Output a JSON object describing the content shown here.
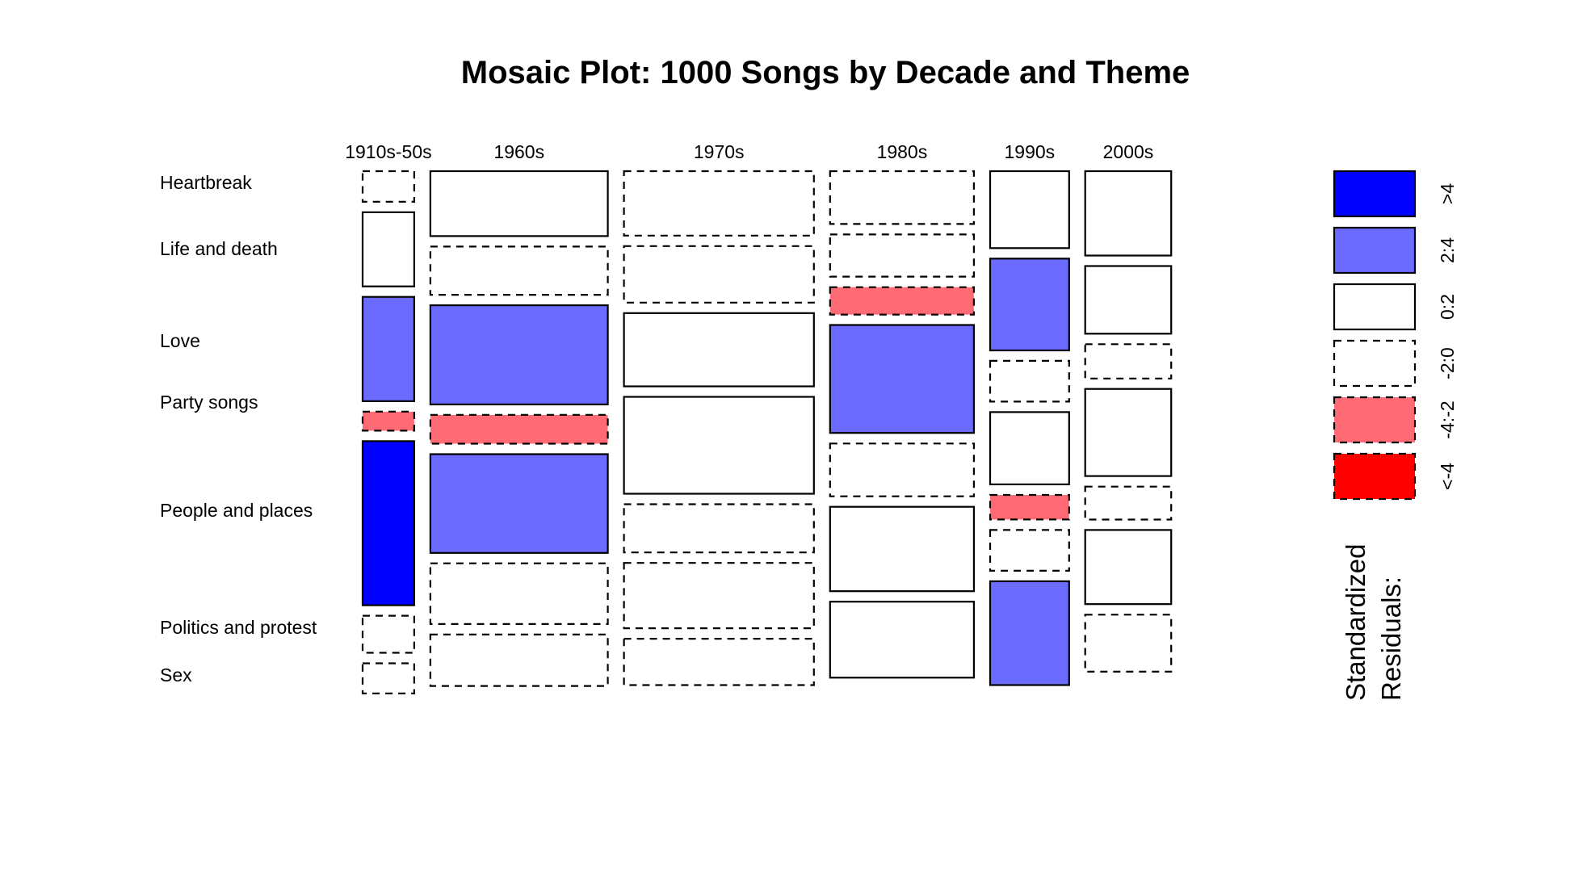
{
  "chart_data": {
    "type": "mosaic",
    "title": "Mosaic Plot: 1000 Songs by Decade and Theme",
    "columns": [
      "1910s-50s",
      "1960s",
      "1970s",
      "1980s",
      "1990s",
      "2000s"
    ],
    "rows": [
      "Heartbreak",
      "Life and death",
      "Love",
      "Party songs",
      "People and places",
      "Politics and protest",
      "Sex"
    ],
    "legend": {
      "title_lines": [
        "Standardized",
        "Residuals:"
      ],
      "entries": [
        {
          "label": ">4",
          "color": "#0000ff",
          "border": "solid"
        },
        {
          "label": "2:4",
          "color": "#6b6bff",
          "border": "solid"
        },
        {
          "label": "0:2",
          "color": "#ffffff",
          "border": "solid"
        },
        {
          "label": "-2:0",
          "color": "#ffffff",
          "border": "dashed"
        },
        {
          "label": "-4:-2",
          "color": "#ff6b74",
          "border": "dashed"
        },
        {
          "label": "<-4",
          "color": "#ff0000",
          "border": "dashed"
        }
      ]
    },
    "column_shares": [
      0.066,
      0.227,
      0.243,
      0.184,
      0.101,
      0.11
    ],
    "cells": [
      [
        {
          "share": 0.066,
          "residual": "-2:0"
        },
        {
          "share": 0.16,
          "residual": "0:2"
        },
        {
          "share": 0.225,
          "residual": "2:4"
        },
        {
          "share": 0.041,
          "residual": "-4:-2"
        },
        {
          "share": 0.354,
          "residual": ">4"
        },
        {
          "share": 0.08,
          "residual": "-2:0"
        },
        {
          "share": 0.065,
          "residual": "-2:0"
        }
      ],
      [
        {
          "share": 0.14,
          "residual": "0:2"
        },
        {
          "share": 0.104,
          "residual": "-2:0"
        },
        {
          "share": 0.214,
          "residual": "2:4"
        },
        {
          "share": 0.062,
          "residual": "-4:-2"
        },
        {
          "share": 0.213,
          "residual": "2:4"
        },
        {
          "share": 0.131,
          "residual": "-2:0"
        },
        {
          "share": 0.111,
          "residual": "-2:0"
        }
      ],
      [
        {
          "share": 0.139,
          "residual": "-2:0"
        },
        {
          "share": 0.122,
          "residual": "-2:0"
        },
        {
          "share": 0.158,
          "residual": "0:2"
        },
        {
          "share": 0.209,
          "residual": "0:2"
        },
        {
          "share": 0.104,
          "residual": "-2:0"
        },
        {
          "share": 0.141,
          "residual": "-2:0"
        },
        {
          "share": 0.1,
          "residual": "-2:0"
        }
      ],
      [
        {
          "share": 0.114,
          "residual": "-2:0"
        },
        {
          "share": 0.091,
          "residual": "-2:0"
        },
        {
          "share": 0.059,
          "residual": "-4:-2"
        },
        {
          "share": 0.233,
          "residual": "2:4"
        },
        {
          "share": 0.114,
          "residual": "-2:0"
        },
        {
          "share": 0.182,
          "residual": "0:2"
        },
        {
          "share": 0.164,
          "residual": "0:2"
        }
      ],
      [
        {
          "share": 0.166,
          "residual": "0:2"
        },
        {
          "share": 0.198,
          "residual": "2:4"
        },
        {
          "share": 0.088,
          "residual": "-2:0"
        },
        {
          "share": 0.156,
          "residual": "0:2"
        },
        {
          "share": 0.053,
          "residual": "-4:-2"
        },
        {
          "share": 0.088,
          "residual": "-2:0"
        },
        {
          "share": 0.224,
          "residual": "2:4"
        }
      ],
      [
        {
          "share": 0.182,
          "residual": "0:2"
        },
        {
          "share": 0.146,
          "residual": "0:2"
        },
        {
          "share": 0.074,
          "residual": "-2:0"
        },
        {
          "share": 0.188,
          "residual": "0:2"
        },
        {
          "share": 0.071,
          "residual": "-2:0"
        },
        {
          "share": 0.16,
          "residual": "0:2"
        },
        {
          "share": 0.123,
          "residual": "-2:0"
        }
      ]
    ]
  }
}
